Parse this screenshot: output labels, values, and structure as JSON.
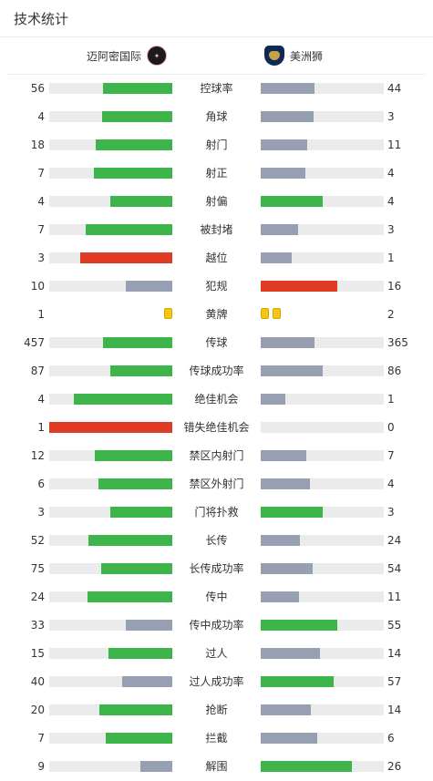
{
  "title": "技术统计",
  "teams": {
    "home": {
      "name": "迈阿密国际",
      "logo_icon": "inter-miami-crest-icon"
    },
    "away": {
      "name": "美洲狮",
      "logo_icon": "pumas-crest-icon"
    }
  },
  "colors": {
    "green": "#3db54a",
    "gray": "#97a0b2",
    "red": "#e03b24",
    "track": "#ebebeb",
    "yellow_card": "#f5c518"
  },
  "stats": [
    {
      "label": "控球率",
      "home": "56",
      "away": "44",
      "home_pct": 0.56,
      "away_pct": 0.44,
      "home_color": "green",
      "away_color": "gray"
    },
    {
      "label": "角球",
      "home": "4",
      "away": "3",
      "home_pct": 0.57,
      "away_pct": 0.43,
      "home_color": "green",
      "away_color": "gray"
    },
    {
      "label": "射门",
      "home": "18",
      "away": "11",
      "home_pct": 0.62,
      "away_pct": 0.38,
      "home_color": "green",
      "away_color": "gray"
    },
    {
      "label": "射正",
      "home": "7",
      "away": "4",
      "home_pct": 0.64,
      "away_pct": 0.36,
      "home_color": "green",
      "away_color": "gray"
    },
    {
      "label": "射偏",
      "home": "4",
      "away": "4",
      "home_pct": 0.5,
      "away_pct": 0.5,
      "home_color": "green",
      "away_color": "green"
    },
    {
      "label": "被封堵",
      "home": "7",
      "away": "3",
      "home_pct": 0.7,
      "away_pct": 0.3,
      "home_color": "green",
      "away_color": "gray"
    },
    {
      "label": "越位",
      "home": "3",
      "away": "1",
      "home_pct": 0.75,
      "away_pct": 0.25,
      "home_color": "red",
      "away_color": "gray"
    },
    {
      "label": "犯规",
      "home": "10",
      "away": "16",
      "home_pct": 0.38,
      "away_pct": 0.62,
      "home_color": "gray",
      "away_color": "red"
    },
    {
      "label": "黄牌",
      "home": "1",
      "away": "2",
      "type": "cards",
      "home_cards": 1,
      "away_cards": 2
    },
    {
      "label": "传球",
      "home": "457",
      "away": "365",
      "home_pct": 0.56,
      "away_pct": 0.44,
      "home_color": "green",
      "away_color": "gray"
    },
    {
      "label": "传球成功率",
      "home": "87",
      "away": "86",
      "home_pct": 0.5,
      "away_pct": 0.5,
      "home_color": "green",
      "away_color": "gray"
    },
    {
      "label": "绝佳机会",
      "home": "4",
      "away": "1",
      "home_pct": 0.8,
      "away_pct": 0.2,
      "home_color": "green",
      "away_color": "gray"
    },
    {
      "label": "错失绝佳机会",
      "home": "1",
      "away": "0",
      "home_pct": 1.0,
      "away_pct": 0.0,
      "home_color": "red",
      "away_color": "gray"
    },
    {
      "label": "禁区内射门",
      "home": "12",
      "away": "7",
      "home_pct": 0.63,
      "away_pct": 0.37,
      "home_color": "green",
      "away_color": "gray"
    },
    {
      "label": "禁区外射门",
      "home": "6",
      "away": "4",
      "home_pct": 0.6,
      "away_pct": 0.4,
      "home_color": "green",
      "away_color": "gray"
    },
    {
      "label": "门将扑救",
      "home": "3",
      "away": "3",
      "home_pct": 0.5,
      "away_pct": 0.5,
      "home_color": "green",
      "away_color": "green"
    },
    {
      "label": "长传",
      "home": "52",
      "away": "24",
      "home_pct": 0.68,
      "away_pct": 0.32,
      "home_color": "green",
      "away_color": "gray"
    },
    {
      "label": "长传成功率",
      "home": "75",
      "away": "54",
      "home_pct": 0.58,
      "away_pct": 0.42,
      "home_color": "green",
      "away_color": "gray"
    },
    {
      "label": "传中",
      "home": "24",
      "away": "11",
      "home_pct": 0.69,
      "away_pct": 0.31,
      "home_color": "green",
      "away_color": "gray"
    },
    {
      "label": "传中成功率",
      "home": "33",
      "away": "55",
      "home_pct": 0.38,
      "away_pct": 0.62,
      "home_color": "gray",
      "away_color": "green"
    },
    {
      "label": "过人",
      "home": "15",
      "away": "14",
      "home_pct": 0.52,
      "away_pct": 0.48,
      "home_color": "green",
      "away_color": "gray"
    },
    {
      "label": "过人成功率",
      "home": "40",
      "away": "57",
      "home_pct": 0.41,
      "away_pct": 0.59,
      "home_color": "gray",
      "away_color": "green"
    },
    {
      "label": "抢断",
      "home": "20",
      "away": "14",
      "home_pct": 0.59,
      "away_pct": 0.41,
      "home_color": "green",
      "away_color": "gray"
    },
    {
      "label": "拦截",
      "home": "7",
      "away": "6",
      "home_pct": 0.54,
      "away_pct": 0.46,
      "home_color": "green",
      "away_color": "gray"
    },
    {
      "label": "解围",
      "home": "9",
      "away": "26",
      "home_pct": 0.26,
      "away_pct": 0.74,
      "home_color": "gray",
      "away_color": "green"
    }
  ]
}
